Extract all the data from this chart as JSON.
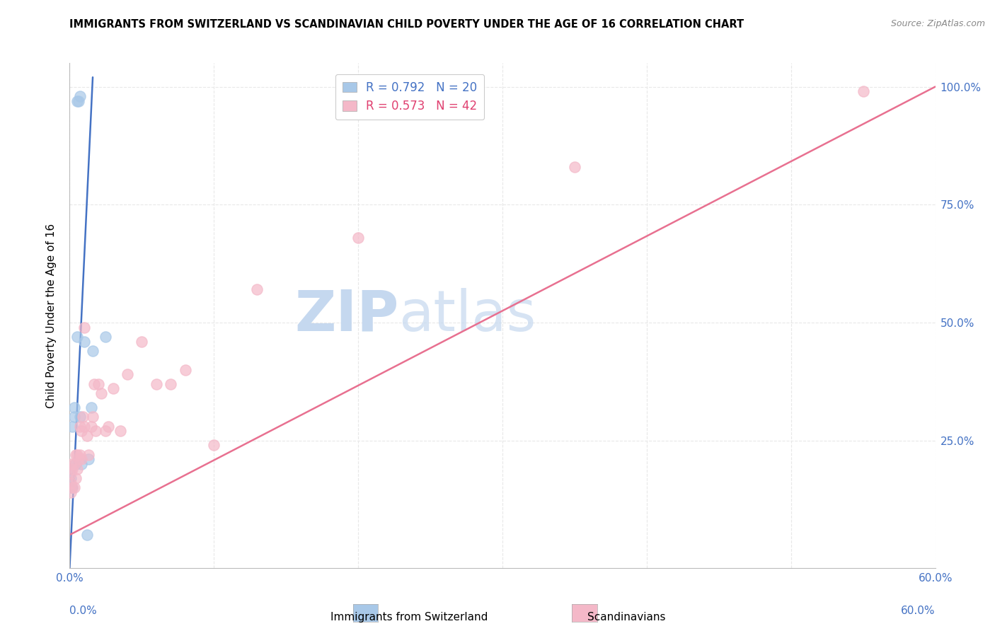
{
  "title": "IMMIGRANTS FROM SWITZERLAND VS SCANDINAVIAN CHILD POVERTY UNDER THE AGE OF 16 CORRELATION CHART",
  "source": "Source: ZipAtlas.com",
  "ylabel": "Child Poverty Under the Age of 16",
  "legend_label1": "Immigrants from Switzerland",
  "legend_label2": "Scandinavians",
  "legend_R1": "R = 0.792",
  "legend_N1": "N = 20",
  "legend_R2": "R = 0.573",
  "legend_N2": "N = 42",
  "blue_color": "#a8c8e8",
  "pink_color": "#f4b8c8",
  "blue_line_color": "#4472c4",
  "pink_line_color": "#e87090",
  "blue_text_color": "#4472c4",
  "pink_text_color": "#e04070",
  "watermark_zip_color": "#c8daf0",
  "watermark_atlas_color": "#b8cce8",
  "background_color": "#ffffff",
  "grid_color": "#e8e8e8",
  "xlim": [
    0.0,
    0.6
  ],
  "ylim": [
    -0.02,
    1.05
  ],
  "x_tick_positions": [
    0.0,
    0.1,
    0.2,
    0.3,
    0.4,
    0.5,
    0.6
  ],
  "y_tick_positions": [
    0.25,
    0.5,
    0.75,
    1.0
  ],
  "y_tick_labels": [
    "25.0%",
    "50.0%",
    "75.0%",
    "100.0%"
  ],
  "swiss_x": [
    0.001,
    0.001,
    0.001,
    0.002,
    0.002,
    0.003,
    0.003,
    0.004,
    0.005,
    0.005,
    0.006,
    0.007,
    0.007,
    0.008,
    0.01,
    0.012,
    0.013,
    0.015,
    0.016,
    0.025
  ],
  "swiss_y": [
    0.15,
    0.17,
    0.19,
    0.15,
    0.28,
    0.3,
    0.32,
    0.2,
    0.47,
    0.97,
    0.97,
    0.98,
    0.3,
    0.2,
    0.46,
    0.05,
    0.21,
    0.32,
    0.44,
    0.47
  ],
  "scand_x": [
    0.001,
    0.001,
    0.001,
    0.001,
    0.002,
    0.002,
    0.003,
    0.003,
    0.004,
    0.004,
    0.005,
    0.005,
    0.006,
    0.007,
    0.007,
    0.008,
    0.008,
    0.009,
    0.01,
    0.01,
    0.012,
    0.013,
    0.015,
    0.016,
    0.017,
    0.018,
    0.02,
    0.022,
    0.025,
    0.027,
    0.03,
    0.035,
    0.04,
    0.05,
    0.06,
    0.07,
    0.08,
    0.1,
    0.13,
    0.2,
    0.35,
    0.55
  ],
  "scand_y": [
    0.14,
    0.16,
    0.18,
    0.2,
    0.15,
    0.19,
    0.15,
    0.2,
    0.17,
    0.22,
    0.19,
    0.22,
    0.21,
    0.22,
    0.28,
    0.21,
    0.27,
    0.3,
    0.28,
    0.49,
    0.26,
    0.22,
    0.28,
    0.3,
    0.37,
    0.27,
    0.37,
    0.35,
    0.27,
    0.28,
    0.36,
    0.27,
    0.39,
    0.46,
    0.37,
    0.37,
    0.4,
    0.24,
    0.57,
    0.68,
    0.83,
    0.99
  ],
  "swiss_line_x": [
    0.0,
    0.016
  ],
  "swiss_line_y": [
    -0.02,
    1.02
  ],
  "scand_line_x": [
    0.0,
    0.6
  ],
  "scand_line_y": [
    0.05,
    1.0
  ]
}
